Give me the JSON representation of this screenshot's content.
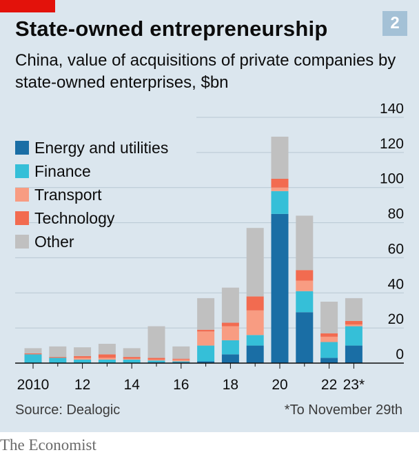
{
  "header": {
    "title": "State-owned entrepreneurship",
    "chart_number": "2",
    "subtitle": "China, value of acquisitions of private companies by state-owned enterprises, $bn"
  },
  "footer": {
    "source": "Source: Dealogic",
    "footnote": "*To November 29th",
    "brand": "The Economist"
  },
  "chart_data": {
    "type": "bar",
    "stacked": true,
    "categories": [
      "2010",
      "2011",
      "2012",
      "2013",
      "2014",
      "2015",
      "2016",
      "2017",
      "2018",
      "2019",
      "2020",
      "2021",
      "2022",
      "2023*"
    ],
    "x_tick_labels": [
      "2010",
      "",
      "12",
      "",
      "14",
      "",
      "16",
      "",
      "18",
      "",
      "20",
      "",
      "22",
      "23*"
    ],
    "ylim": [
      0,
      140
    ],
    "yticks": [
      0,
      20,
      40,
      60,
      80,
      100,
      120,
      140
    ],
    "grid": true,
    "legend_position": "top-left",
    "series": [
      {
        "name": "Energy and utilities",
        "color": "#1a6ea5",
        "values": [
          0,
          0,
          0,
          0,
          0,
          0.5,
          0.5,
          1,
          5,
          10,
          85,
          29,
          3,
          10
        ]
      },
      {
        "name": "Finance",
        "color": "#35bfd8",
        "values": [
          5,
          3,
          2,
          2,
          2,
          1,
          0.5,
          9,
          8,
          6,
          13,
          12,
          9,
          11
        ]
      },
      {
        "name": "Transport",
        "color": "#f89c82",
        "values": [
          0,
          0,
          1,
          1,
          0.5,
          0.5,
          1,
          8,
          8,
          14,
          2,
          6,
          3,
          1
        ]
      },
      {
        "name": "Technology",
        "color": "#f26b50",
        "values": [
          0.5,
          0.5,
          1,
          2,
          1,
          1,
          0.5,
          1,
          2,
          8,
          5,
          6,
          2,
          2
        ]
      },
      {
        "name": "Other",
        "color": "#c0c0c0",
        "values": [
          3,
          6,
          5,
          6,
          5,
          18,
          7,
          18,
          20,
          39,
          24,
          31,
          18,
          13
        ]
      }
    ]
  }
}
